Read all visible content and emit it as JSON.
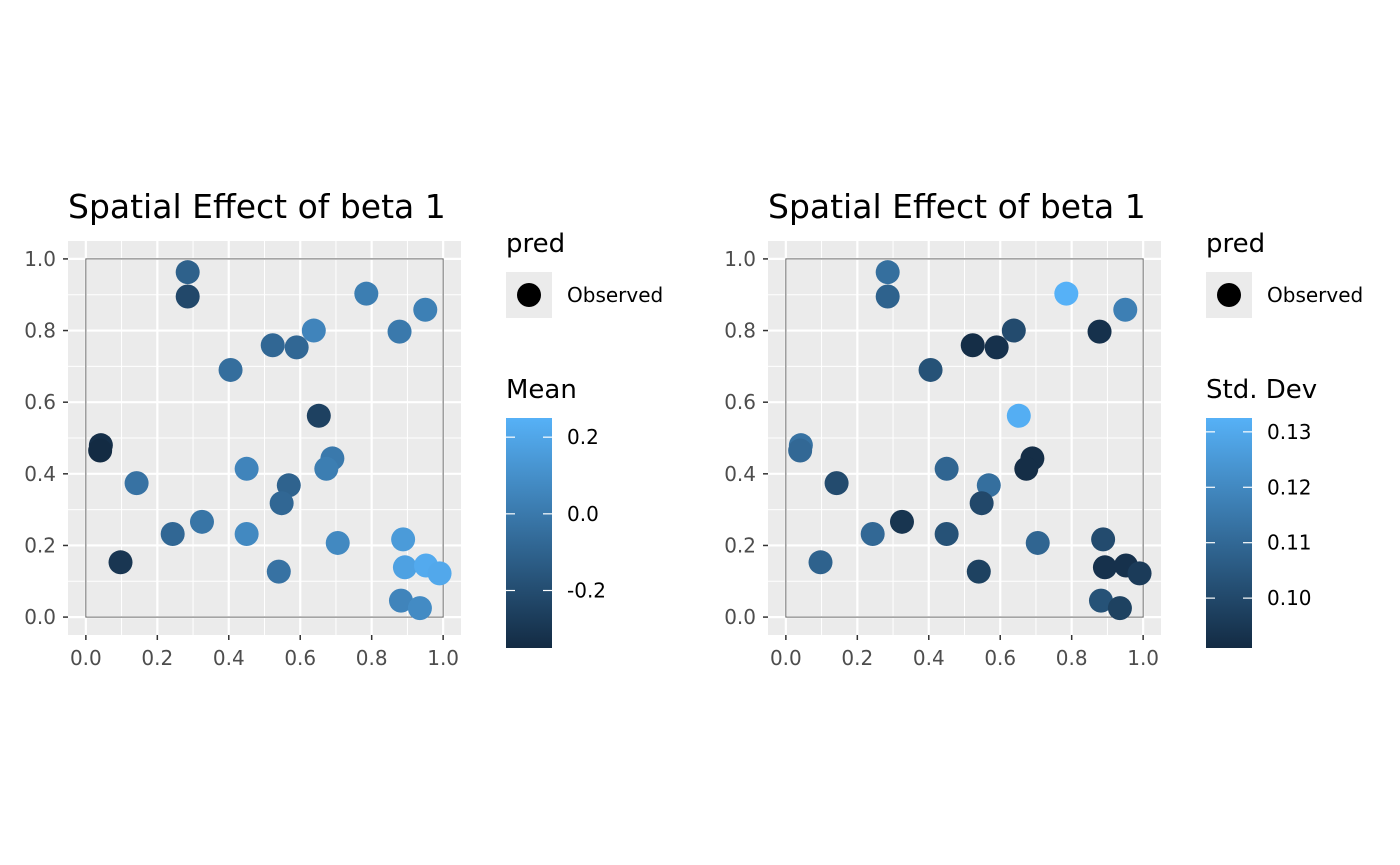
{
  "chart_data": [
    {
      "type": "scatter",
      "title": "Spatial Effect of beta 1",
      "xlabel": "",
      "ylabel": "",
      "xlim": [
        -0.05,
        1.05
      ],
      "ylim": [
        -0.05,
        1.05
      ],
      "x_ticks": [
        "0.0",
        "0.2",
        "0.4",
        "0.6",
        "0.8",
        "1.0"
      ],
      "y_ticks": [
        "0.0",
        "0.2",
        "0.4",
        "0.6",
        "0.8",
        "1.0"
      ],
      "grid": true,
      "legend_shape": {
        "title": "pred",
        "label": "Observed"
      },
      "legend_color": {
        "title": "Mean",
        "range": [
          -0.35,
          0.25
        ],
        "breaks": [
          -0.2,
          0.0,
          0.2
        ],
        "break_labels": [
          "-0.2",
          "0.0",
          "0.2"
        ],
        "low_color": "#132B43",
        "high_color": "#56B1F7"
      },
      "points": [
        {
          "x": 0.285,
          "y": 0.963,
          "value": -0.11
        },
        {
          "x": 0.285,
          "y": 0.895,
          "value": -0.22
        },
        {
          "x": 0.785,
          "y": 0.903,
          "value": 0.02
        },
        {
          "x": 0.95,
          "y": 0.858,
          "value": 0.03
        },
        {
          "x": 0.638,
          "y": 0.8,
          "value": 0.05
        },
        {
          "x": 0.878,
          "y": 0.797,
          "value": 0.0
        },
        {
          "x": 0.523,
          "y": 0.759,
          "value": -0.08
        },
        {
          "x": 0.59,
          "y": 0.753,
          "value": -0.08
        },
        {
          "x": 0.405,
          "y": 0.69,
          "value": -0.05
        },
        {
          "x": 0.652,
          "y": 0.562,
          "value": -0.25
        },
        {
          "x": 0.042,
          "y": 0.48,
          "value": -0.33
        },
        {
          "x": 0.04,
          "y": 0.465,
          "value": -0.35
        },
        {
          "x": 0.69,
          "y": 0.443,
          "value": 0.0
        },
        {
          "x": 0.673,
          "y": 0.414,
          "value": 0.02
        },
        {
          "x": 0.45,
          "y": 0.414,
          "value": 0.05
        },
        {
          "x": 0.142,
          "y": 0.374,
          "value": -0.03
        },
        {
          "x": 0.568,
          "y": 0.368,
          "value": -0.1
        },
        {
          "x": 0.548,
          "y": 0.318,
          "value": -0.08
        },
        {
          "x": 0.325,
          "y": 0.266,
          "value": -0.02
        },
        {
          "x": 0.243,
          "y": 0.232,
          "value": -0.08
        },
        {
          "x": 0.45,
          "y": 0.232,
          "value": 0.07
        },
        {
          "x": 0.705,
          "y": 0.207,
          "value": 0.07
        },
        {
          "x": 0.888,
          "y": 0.217,
          "value": 0.15
        },
        {
          "x": 0.097,
          "y": 0.153,
          "value": -0.3
        },
        {
          "x": 0.54,
          "y": 0.127,
          "value": -0.03
        },
        {
          "x": 0.893,
          "y": 0.139,
          "value": 0.18
        },
        {
          "x": 0.952,
          "y": 0.144,
          "value": 0.22
        },
        {
          "x": 0.99,
          "y": 0.122,
          "value": 0.21
        },
        {
          "x": 0.882,
          "y": 0.046,
          "value": 0.05
        },
        {
          "x": 0.935,
          "y": 0.025,
          "value": 0.08
        }
      ]
    },
    {
      "type": "scatter",
      "title": "Spatial Effect of beta 1",
      "xlabel": "",
      "ylabel": "",
      "xlim": [
        -0.05,
        1.05
      ],
      "ylim": [
        -0.05,
        1.05
      ],
      "x_ticks": [
        "0.0",
        "0.2",
        "0.4",
        "0.6",
        "0.8",
        "1.0"
      ],
      "y_ticks": [
        "0.0",
        "0.2",
        "0.4",
        "0.6",
        "0.8",
        "1.0"
      ],
      "grid": true,
      "legend_shape": {
        "title": "pred",
        "label": "Observed"
      },
      "legend_color": {
        "title": "Std. Dev",
        "range": [
          0.091,
          0.1325
        ],
        "breaks": [
          0.1,
          0.11,
          0.12,
          0.13
        ],
        "break_labels": [
          "0.10",
          "0.11",
          "0.12",
          "0.13"
        ],
        "low_color": "#132B43",
        "high_color": "#56B1F7"
      },
      "points": [
        {
          "x": 0.285,
          "y": 0.963,
          "value": 0.112
        },
        {
          "x": 0.285,
          "y": 0.895,
          "value": 0.108
        },
        {
          "x": 0.785,
          "y": 0.903,
          "value": 0.1325
        },
        {
          "x": 0.95,
          "y": 0.858,
          "value": 0.117
        },
        {
          "x": 0.638,
          "y": 0.8,
          "value": 0.101
        },
        {
          "x": 0.878,
          "y": 0.797,
          "value": 0.093
        },
        {
          "x": 0.523,
          "y": 0.759,
          "value": 0.092
        },
        {
          "x": 0.59,
          "y": 0.753,
          "value": 0.093
        },
        {
          "x": 0.405,
          "y": 0.69,
          "value": 0.103
        },
        {
          "x": 0.652,
          "y": 0.562,
          "value": 0.1315
        },
        {
          "x": 0.042,
          "y": 0.48,
          "value": 0.113
        },
        {
          "x": 0.04,
          "y": 0.465,
          "value": 0.11
        },
        {
          "x": 0.69,
          "y": 0.443,
          "value": 0.092
        },
        {
          "x": 0.673,
          "y": 0.414,
          "value": 0.092
        },
        {
          "x": 0.45,
          "y": 0.414,
          "value": 0.109
        },
        {
          "x": 0.142,
          "y": 0.374,
          "value": 0.101
        },
        {
          "x": 0.568,
          "y": 0.368,
          "value": 0.112
        },
        {
          "x": 0.548,
          "y": 0.318,
          "value": 0.1
        },
        {
          "x": 0.325,
          "y": 0.266,
          "value": 0.094
        },
        {
          "x": 0.243,
          "y": 0.232,
          "value": 0.11
        },
        {
          "x": 0.45,
          "y": 0.232,
          "value": 0.103
        },
        {
          "x": 0.705,
          "y": 0.207,
          "value": 0.109
        },
        {
          "x": 0.888,
          "y": 0.217,
          "value": 0.101
        },
        {
          "x": 0.097,
          "y": 0.153,
          "value": 0.108
        },
        {
          "x": 0.54,
          "y": 0.127,
          "value": 0.098
        },
        {
          "x": 0.893,
          "y": 0.139,
          "value": 0.093
        },
        {
          "x": 0.952,
          "y": 0.144,
          "value": 0.093
        },
        {
          "x": 0.99,
          "y": 0.122,
          "value": 0.096
        },
        {
          "x": 0.882,
          "y": 0.046,
          "value": 0.103
        },
        {
          "x": 0.935,
          "y": 0.025,
          "value": 0.098
        }
      ]
    }
  ]
}
